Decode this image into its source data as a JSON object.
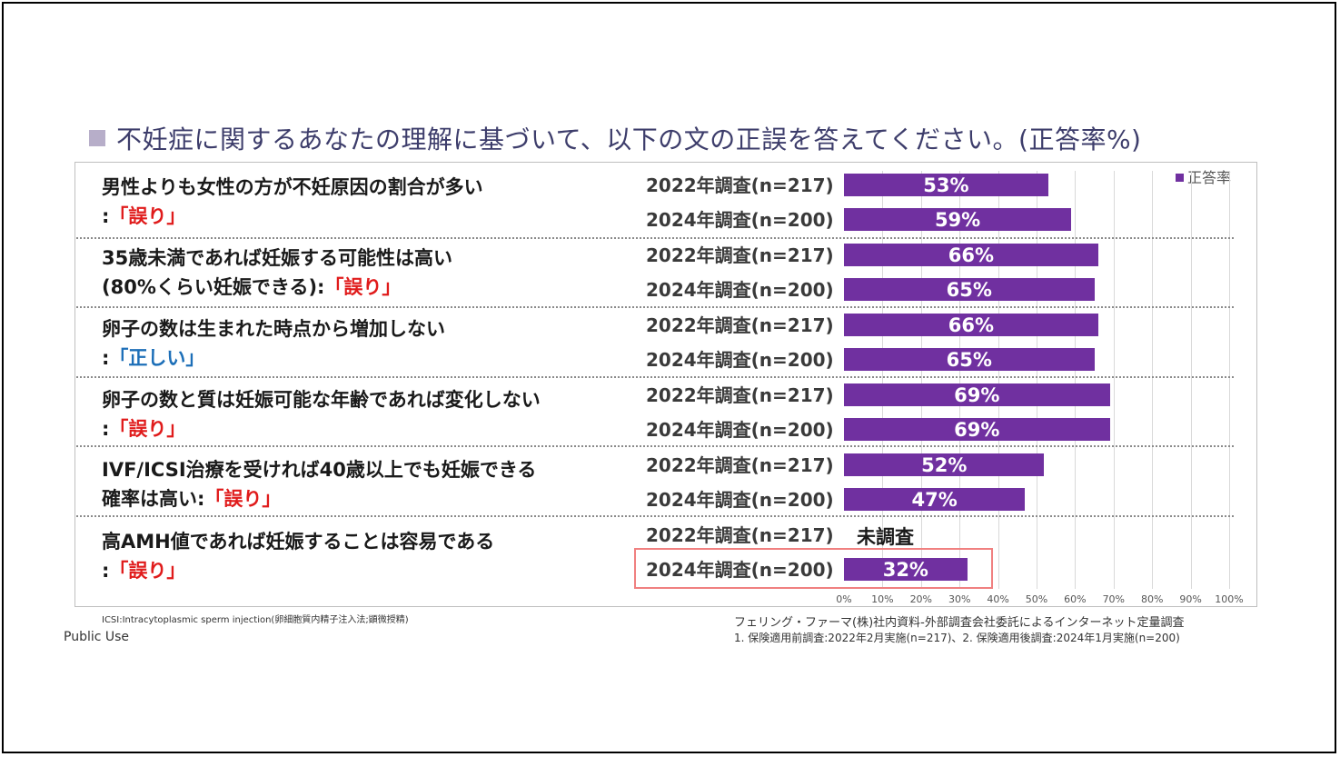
{
  "title": "不妊症に関するあなたの理解に基づいて、以下の文の正誤を答えてください。(正答率%)",
  "questions": [
    {
      "line1": "男性よりも女性の方が不妊原因の割合が多い",
      "line2_prefix": ":",
      "answer": "「誤り」",
      "answer_color": "red"
    },
    {
      "line1": "35歳未満であれば妊娠する可能性は高い",
      "line2_prefix": "(80%くらい妊娠できる):",
      "answer": "「誤り」",
      "answer_color": "red"
    },
    {
      "line1": "卵子の数は生まれた時点から増加しない",
      "line2_prefix": ":",
      "answer": "「正しい」",
      "answer_color": "blue"
    },
    {
      "line1": "卵子の数と質は妊娠可能な年齢であれば変化しない",
      "line2_prefix": ":",
      "answer": "「誤り」",
      "answer_color": "red"
    },
    {
      "line1": "IVF/ICSI治療を受ければ40歳以上でも妊娠できる",
      "line2_prefix": "確率は高い:",
      "answer": "「誤り」",
      "answer_color": "red"
    },
    {
      "line1": "高AMH値であれば妊娠することは容易である",
      "line2_prefix": ":",
      "answer": "「誤り」",
      "answer_color": "red"
    }
  ],
  "not_surveyed": "未調査",
  "footnote": "ICSI:Intracytoplasmic sperm injection(卵細胞質内精子注入法;顕微授精)",
  "public_use": "Public Use",
  "source_line1": "フェリング・ファーマ(株)社内資料-外部調査会社委託によるインターネット定量調査",
  "source_line2": "1. 保険適用前調査:2022年2月実施(n=217)、2. 保険適用後調査:2024年1月実施(n=200)",
  "colors": {
    "bar": "#7030a0",
    "wrong": "#e01b1b",
    "correct": "#1d6fb8",
    "highlight": "#f08080"
  },
  "chart_data": {
    "type": "bar",
    "orientation": "horizontal",
    "legend": "正答率",
    "legend_position": "top-right",
    "xlim": [
      0,
      100
    ],
    "x_ticks": [
      "0%",
      "10%",
      "20%",
      "30%",
      "40%",
      "50%",
      "60%",
      "70%",
      "80%",
      "90%",
      "100%"
    ],
    "categories": [
      "2022年調査(n=217)",
      "2024年調査(n=200)",
      "2022年調査(n=217)",
      "2024年調査(n=200)",
      "2022年調査(n=217)",
      "2024年調査(n=200)",
      "2022年調査(n=217)",
      "2024年調査(n=200)",
      "2022年調査(n=217)",
      "2024年調査(n=200)",
      "2022年調査(n=217)",
      "2024年調査(n=200)"
    ],
    "values": [
      53,
      59,
      66,
      65,
      66,
      65,
      69,
      69,
      52,
      47,
      null,
      32
    ],
    "value_labels": [
      "53%",
      "59%",
      "66%",
      "65%",
      "66%",
      "65%",
      "69%",
      "69%",
      "52%",
      "47%",
      "",
      "32%"
    ]
  }
}
